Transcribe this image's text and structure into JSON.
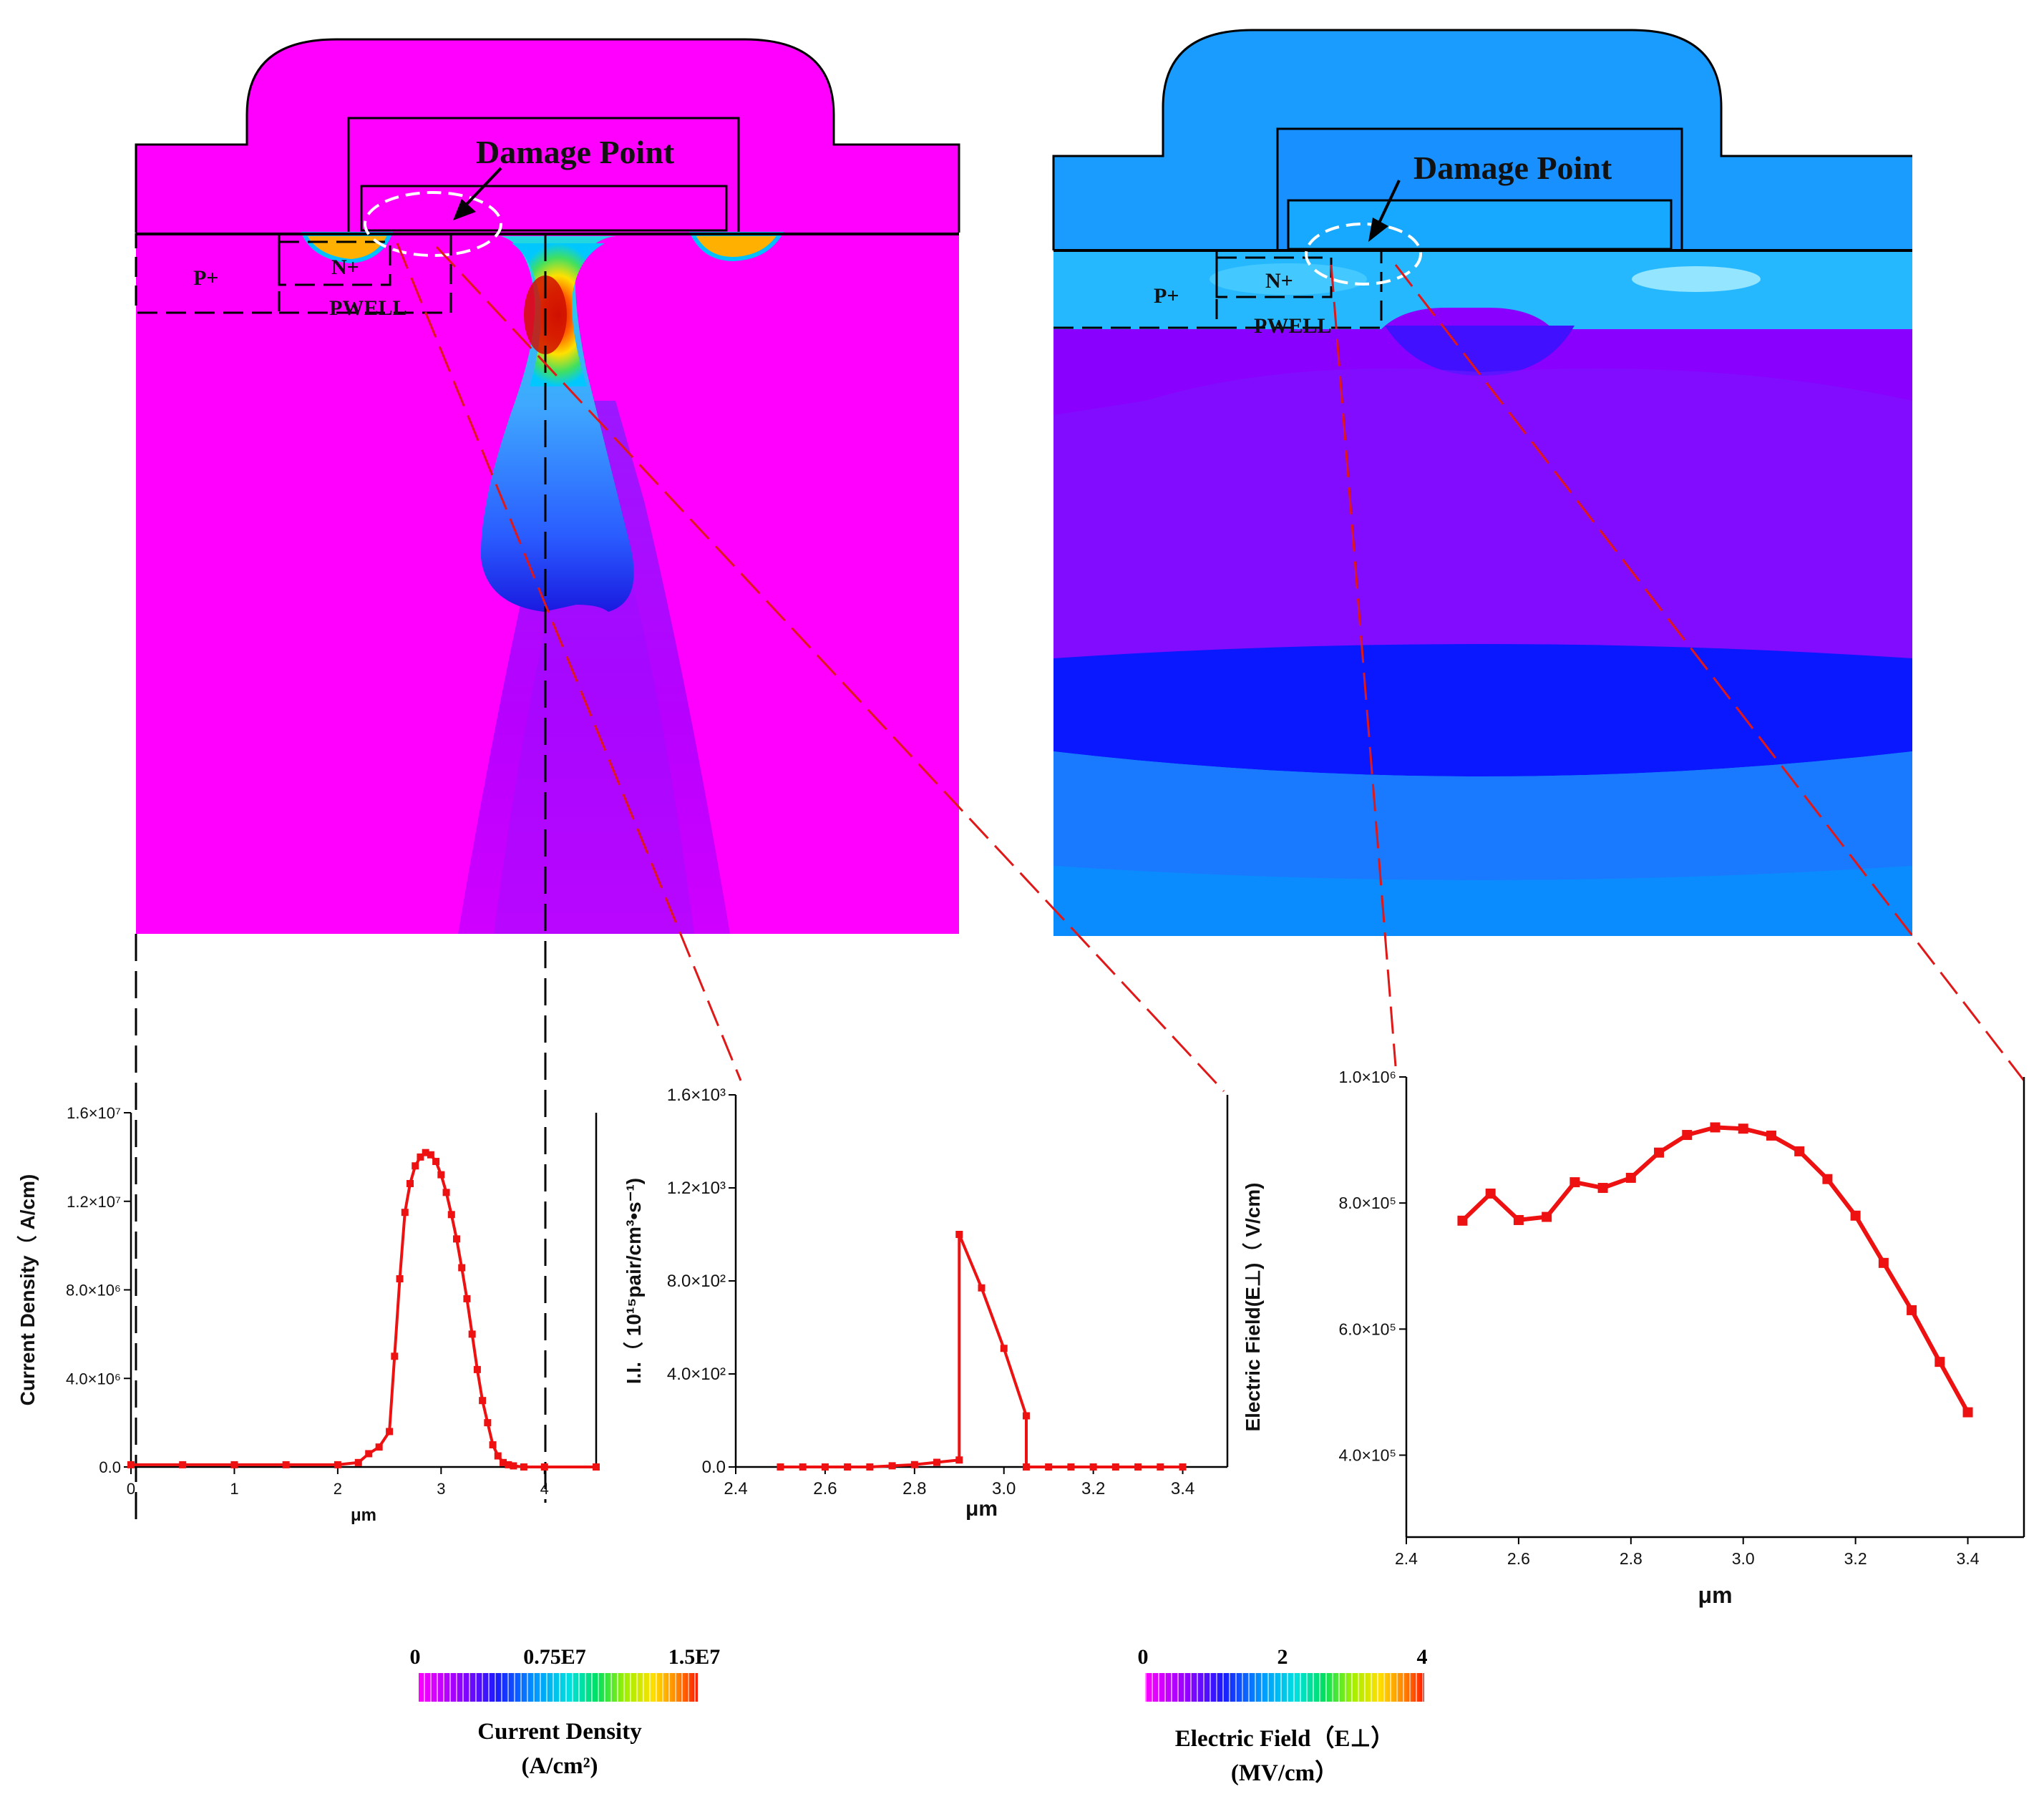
{
  "left_sim": {
    "label_damage": "Damage Point",
    "label_p": "P+",
    "label_n": "N+",
    "label_pwell": "PWELL"
  },
  "right_sim": {
    "label_damage": "Damage Point",
    "label_p": "P+",
    "label_n": "N+",
    "label_pwell": "PWELL"
  },
  "colors": {
    "left_background": "#ff00ff",
    "right_background": "#0099ff",
    "guide_red": "#e01818",
    "curve_red": "#ee1111"
  },
  "chart_data": [
    {
      "type": "line",
      "name": "current-density",
      "ylabel": "Current Density（ A/cm)",
      "xlabel": "μm",
      "xlim": [
        0,
        4.5
      ],
      "ylim": [
        0,
        16000000.0
      ],
      "xticks": [
        0,
        1,
        2,
        3,
        4
      ],
      "xtick_labels": [
        "0",
        "1",
        "2",
        "3",
        "4"
      ],
      "yticks": [
        0,
        4000000.0,
        8000000.0,
        12000000.0,
        16000000.0
      ],
      "ytick_labels": [
        "0.0",
        "4.0×10⁶",
        "8.0×10⁶",
        "1.2×10⁷",
        "1.6×10⁷"
      ],
      "x": [
        0,
        0.5,
        1.0,
        1.5,
        2.0,
        2.2,
        2.3,
        2.4,
        2.5,
        2.55,
        2.6,
        2.65,
        2.7,
        2.75,
        2.8,
        2.85,
        2.9,
        2.95,
        3.0,
        3.05,
        3.1,
        3.15,
        3.2,
        3.25,
        3.3,
        3.35,
        3.4,
        3.45,
        3.5,
        3.55,
        3.6,
        3.65,
        3.7,
        3.8,
        4.0,
        4.5
      ],
      "y": [
        100000.0,
        100000.0,
        100000.0,
        100000.0,
        100000.0,
        200000.0,
        600000.0,
        900000.0,
        1600000.0,
        5000000.0,
        8500000.0,
        11500000.0,
        12800000.0,
        13600000.0,
        14000000.0,
        14200000.0,
        14100000.0,
        13800000.0,
        13200000.0,
        12400000.0,
        11400000.0,
        10300000.0,
        9000000.0,
        7600000.0,
        6000000.0,
        4400000.0,
        3000000.0,
        2000000.0,
        1000000.0,
        500000.0,
        200000.0,
        100000.0,
        50000.0,
        0,
        0,
        0
      ]
    },
    {
      "type": "line",
      "name": "impact-ionization",
      "ylabel": "I.I.（ 10¹⁵pair/cm³•s⁻¹)",
      "xlabel": "μm",
      "xlim": [
        2.4,
        3.5
      ],
      "ylim": [
        0,
        1600
      ],
      "xticks": [
        2.4,
        2.6,
        2.8,
        3.0,
        3.2,
        3.4
      ],
      "xtick_labels": [
        "2.4",
        "2.6",
        "2.8",
        "3.0",
        "3.2",
        "3.4"
      ],
      "yticks": [
        0,
        400,
        800,
        1200,
        1600
      ],
      "ytick_labels": [
        "0.0",
        "4.0×10²",
        "8.0×10²",
        "1.2×10³",
        "1.6×10³"
      ],
      "x": [
        2.5,
        2.55,
        2.6,
        2.65,
        2.7,
        2.75,
        2.8,
        2.85,
        2.9,
        2.9,
        2.95,
        3.0,
        3.05,
        3.05,
        3.1,
        3.15,
        3.2,
        3.25,
        3.3,
        3.35,
        3.4
      ],
      "y": [
        0,
        0,
        0,
        0,
        0,
        5,
        10,
        20,
        30,
        1000,
        770,
        510,
        220,
        0,
        0,
        0,
        0,
        0,
        0,
        0,
        0
      ]
    },
    {
      "type": "line",
      "name": "electric-field",
      "ylabel": "Electric Field(E⊥)（ V/cm)",
      "xlabel": "μm",
      "xlim": [
        2.4,
        3.5
      ],
      "ylim": [
        270000,
        1000000
      ],
      "xticks": [
        2.4,
        2.6,
        2.8,
        3.0,
        3.2,
        3.4
      ],
      "xtick_labels": [
        "2.4",
        "2.6",
        "2.8",
        "3.0",
        "3.2",
        "3.4"
      ],
      "yticks": [
        400000,
        600000,
        800000,
        1000000
      ],
      "ytick_labels": [
        "4.0×10⁵",
        "6.0×10⁵",
        "8.0×10⁵",
        "1.0×10⁶"
      ],
      "x": [
        2.5,
        2.55,
        2.6,
        2.65,
        2.7,
        2.75,
        2.8,
        2.85,
        2.9,
        2.95,
        3.0,
        3.05,
        3.1,
        3.15,
        3.2,
        3.25,
        3.3,
        3.35,
        3.4
      ],
      "y": [
        772000,
        815000,
        773000,
        778000,
        833000,
        824000,
        840000,
        880000,
        908000,
        920000,
        918000,
        907000,
        882000,
        838000,
        780000,
        705000,
        630000,
        548000,
        468000
      ]
    }
  ],
  "legends": [
    {
      "ticks": [
        "0",
        "0.75E7",
        "1.5E7"
      ],
      "title": "Current Density",
      "unit": "(A/cm²)"
    },
    {
      "ticks": [
        "0",
        "2",
        "4"
      ],
      "title": "Electric Field（E⊥）",
      "unit": "(MV/cm）"
    }
  ]
}
